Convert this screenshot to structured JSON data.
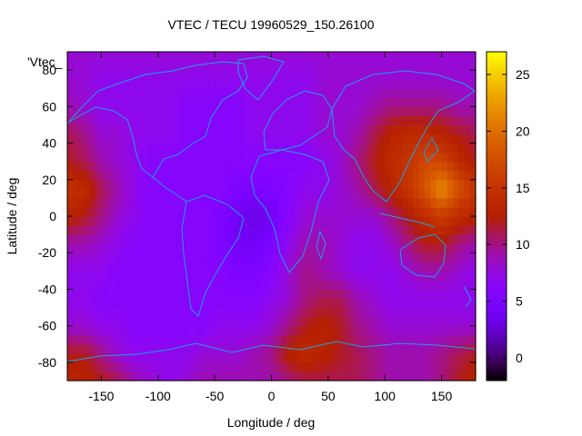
{
  "chart_data": {
    "type": "heatmap",
    "title": "VTEC / TECU 19960529_150.26100",
    "xlabel": "Longitude / deg",
    "ylabel": "Latitude / deg",
    "legend_label": "'Vtec_",
    "xlim": [
      -180,
      180
    ],
    "ylim": [
      -90,
      90
    ],
    "xticks": [
      -150,
      -100,
      -50,
      0,
      50,
      100,
      150
    ],
    "yticks": [
      -80,
      -60,
      -40,
      -20,
      0,
      20,
      40,
      60,
      80
    ],
    "colorbar": {
      "range": [
        -2,
        27
      ],
      "ticks": [
        0,
        5,
        10,
        15,
        20,
        25
      ],
      "palette": "gnuplot-rgb-7-5-15"
    },
    "grid_lon": [
      -180,
      -165,
      -150,
      -135,
      -120,
      -105,
      -90,
      -75,
      -60,
      -45,
      -30,
      -15,
      0,
      15,
      30,
      45,
      60,
      75,
      90,
      105,
      120,
      135,
      150,
      165,
      180
    ],
    "grid_lat": [
      -90,
      -75,
      -60,
      -45,
      -30,
      -15,
      0,
      15,
      30,
      45,
      60,
      75,
      90
    ],
    "values": [
      [
        13,
        13,
        12,
        11,
        9,
        8,
        7,
        8,
        9,
        9,
        9,
        9,
        9,
        10,
        11,
        11,
        11,
        11,
        10,
        9,
        9,
        9,
        10,
        12,
        13
      ],
      [
        12,
        12,
        10,
        8,
        7,
        7,
        7,
        7,
        8,
        8,
        8,
        9,
        10,
        13,
        14,
        13,
        12,
        11,
        10,
        9,
        9,
        9,
        10,
        11,
        12
      ],
      [
        8,
        8,
        7,
        7,
        6,
        6,
        6,
        6,
        6,
        7,
        7,
        7,
        8,
        10,
        12,
        13,
        12,
        10,
        9,
        8,
        8,
        8,
        8,
        8,
        8
      ],
      [
        7,
        7,
        6,
        6,
        6,
        6,
        6,
        6,
        6,
        6,
        6,
        6,
        7,
        8,
        10,
        11,
        11,
        9,
        8,
        7,
        7,
        7,
        7,
        7,
        7
      ],
      [
        7,
        7,
        7,
        6,
        6,
        6,
        6,
        6,
        6,
        6,
        5,
        5,
        6,
        8,
        10,
        9,
        8,
        7,
        7,
        7,
        8,
        9,
        9,
        8,
        7
      ],
      [
        9,
        9,
        8,
        7,
        6,
        6,
        6,
        6,
        6,
        5,
        4,
        4,
        5,
        7,
        9,
        9,
        8,
        7,
        7,
        8,
        10,
        12,
        12,
        10,
        9
      ],
      [
        13,
        12,
        10,
        8,
        7,
        6,
        6,
        6,
        6,
        5,
        4,
        3,
        4,
        6,
        8,
        8,
        8,
        8,
        8,
        10,
        12,
        14,
        16,
        14,
        13
      ],
      [
        15,
        14,
        11,
        9,
        7,
        6,
        6,
        6,
        6,
        6,
        5,
        5,
        5,
        6,
        7,
        7,
        8,
        9,
        11,
        13,
        15,
        18,
        22,
        18,
        15
      ],
      [
        12,
        11,
        9,
        8,
        7,
        6,
        6,
        6,
        6,
        6,
        6,
        6,
        6,
        6,
        6,
        7,
        8,
        10,
        12,
        14,
        15,
        17,
        17,
        14,
        12
      ],
      [
        11,
        10,
        8,
        8,
        7,
        7,
        7,
        6,
        6,
        6,
        6,
        7,
        7,
        7,
        7,
        8,
        8,
        9,
        11,
        13,
        14,
        14,
        13,
        12,
        11
      ],
      [
        9,
        8,
        7,
        7,
        7,
        7,
        7,
        6,
        6,
        6,
        6,
        7,
        7,
        7,
        7,
        8,
        8,
        8,
        9,
        10,
        10,
        10,
        10,
        9,
        9
      ],
      [
        8,
        8,
        7,
        7,
        7,
        7,
        7,
        7,
        7,
        7,
        7,
        7,
        7,
        7,
        7,
        8,
        8,
        8,
        8,
        8,
        8,
        8,
        8,
        8,
        8
      ],
      [
        8,
        8,
        8,
        8,
        8,
        8,
        8,
        8,
        8,
        8,
        8,
        8,
        8,
        8,
        8,
        8,
        8,
        8,
        8,
        8,
        8,
        8,
        8,
        8,
        8
      ]
    ]
  }
}
